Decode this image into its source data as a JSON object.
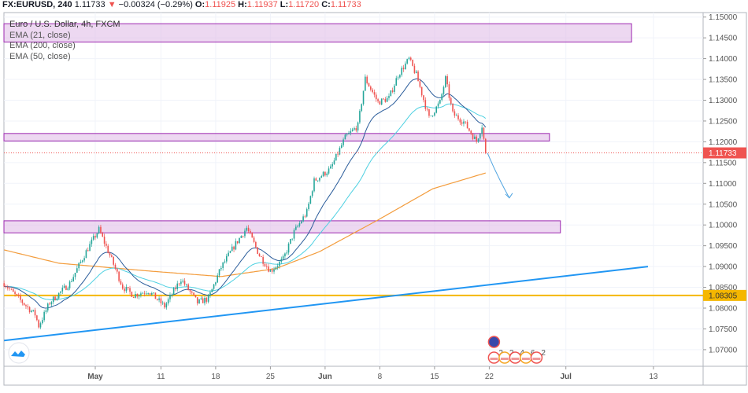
{
  "header": {
    "symbol": "FX:EURUSD, 240",
    "last": "1.11733",
    "change_arrow": "▼",
    "change": "−0.00324 (−0.29%)",
    "o_label": "O:",
    "o": "1.11925",
    "h_label": "H:",
    "h": "1.11937",
    "l_label": "L:",
    "l": "1.11720",
    "c_label": "C:",
    "c": "1.11733"
  },
  "legend": {
    "title": "Euro / U.S. Dollar, 4h, FXCM",
    "studies": [
      "EMA (21, close)",
      "EMA (200, close)",
      "EMA (50, close)"
    ]
  },
  "colors": {
    "up": "#26a69a",
    "down": "#ef5350",
    "ema21": "#2a5c9a",
    "ema50": "#4dd0e1",
    "ema200": "#f39c3c",
    "zone_fill": "#e1bee7",
    "zone_border": "#9c27b0",
    "trendline": "#2196f3",
    "support": "#f5b700",
    "last_price": "#ef5350",
    "arrow": "#4fa3e0"
  },
  "chart_data": {
    "type": "candlestick",
    "symbol": "EURUSD",
    "interval": "4h",
    "ylim": [
      1.0675,
      1.151
    ],
    "price_ticks": [
      "1.15000",
      "1.14500",
      "1.14000",
      "1.13500",
      "1.13000",
      "1.12500",
      "1.12000",
      "1.11500",
      "1.11000",
      "1.10500",
      "1.10000",
      "1.09500",
      "1.09000",
      "1.08500",
      "1.08000",
      "1.07500",
      "1.07000"
    ],
    "time_ticks": [
      {
        "label": "May",
        "date": "2020-05-01"
      },
      {
        "label": "11",
        "date": "2020-05-11"
      },
      {
        "label": "18",
        "date": "2020-05-18"
      },
      {
        "label": "25",
        "date": "2020-05-25"
      },
      {
        "label": "Jun",
        "date": "2020-06-01"
      },
      {
        "label": "8",
        "date": "2020-06-08"
      },
      {
        "label": "15",
        "date": "2020-06-15"
      },
      {
        "label": "22",
        "date": "2020-06-22"
      },
      {
        "label": "Jul",
        "date": "2020-07-01"
      },
      {
        "label": "13",
        "date": "2020-07-13"
      }
    ],
    "close_path": [
      [
        "2020-04-20 16:00",
        1.086
      ],
      [
        "2020-04-21 16:00",
        1.0831
      ],
      [
        "2020-04-23 12:00",
        1.0785
      ],
      [
        "2020-04-23 20:00",
        1.0757
      ],
      [
        "2020-04-24 20:00",
        1.0813
      ],
      [
        "2020-04-28 16:00",
        1.086
      ],
      [
        "2020-04-30 04:00",
        1.0936
      ],
      [
        "2020-05-01 08:00",
        1.0989
      ],
      [
        "2020-05-04 08:00",
        1.0927
      ],
      [
        "2020-05-05 12:00",
        1.0851
      ],
      [
        "2020-05-06 12:00",
        1.0831
      ],
      [
        "2020-05-07 20:00",
        1.0842
      ],
      [
        "2020-05-11 08:00",
        1.0804
      ],
      [
        "2020-05-12 20:00",
        1.087
      ],
      [
        "2020-05-14 08:00",
        1.0813
      ],
      [
        "2020-05-15 08:00",
        1.0823
      ],
      [
        "2020-05-18 12:00",
        1.0898
      ],
      [
        "2020-05-19 20:00",
        1.0955
      ],
      [
        "2020-05-20 20:00",
        1.0993
      ],
      [
        "2020-05-22 00:00",
        1.0927
      ],
      [
        "2020-05-25 00:00",
        1.0889
      ],
      [
        "2020-05-26 04:00",
        1.0917
      ],
      [
        "2020-05-27 04:00",
        1.0983
      ],
      [
        "2020-05-28 08:00",
        1.1031
      ],
      [
        "2020-05-29 00:00",
        1.1106
      ],
      [
        "2020-06-01 12:00",
        1.1135
      ],
      [
        "2020-06-02 20:00",
        1.121
      ],
      [
        "2020-06-04 00:00",
        1.1239
      ],
      [
        "2020-06-04 16:00",
        1.1352
      ],
      [
        "2020-06-05 20:00",
        1.1295
      ],
      [
        "2020-06-08 20:00",
        1.1305
      ],
      [
        "2020-06-09 16:00",
        1.1361
      ],
      [
        "2020-06-10 16:00",
        1.1399
      ],
      [
        "2020-06-11 08:00",
        1.1361
      ],
      [
        "2020-06-12 12:00",
        1.1257
      ],
      [
        "2020-06-15 12:00",
        1.1295
      ],
      [
        "2020-06-16 00:00",
        1.1352
      ],
      [
        "2020-06-16 16:00",
        1.1267
      ],
      [
        "2020-06-17 16:00",
        1.1248
      ],
      [
        "2020-06-18 20:00",
        1.1201
      ],
      [
        "2020-06-19 08:00",
        1.1239
      ],
      [
        "2020-06-19 16:00",
        1.11733
      ]
    ],
    "ema200_path": [
      [
        "2020-04-20 16:00",
        1.094
      ],
      [
        "2020-04-27 16:00",
        1.0908
      ],
      [
        "2020-05-08 00:00",
        1.0889
      ],
      [
        "2020-05-18 12:00",
        1.0876
      ],
      [
        "2020-05-25 12:00",
        1.0895
      ],
      [
        "2020-05-29 12:00",
        1.0936
      ],
      [
        "2020-06-05 20:00",
        1.1012
      ],
      [
        "2020-06-12 20:00",
        1.1087
      ],
      [
        "2020-06-19 16:00",
        1.1125
      ]
    ],
    "zones": [
      {
        "top": 1.1484,
        "bottom": 1.144,
        "from": "2020-04-20 16:00",
        "to": "2020-07-09 00:00"
      },
      {
        "top": 1.122,
        "bottom": 1.1202,
        "from": "2020-04-20 16:00",
        "to": "2020-06-29 12:00"
      },
      {
        "top": 1.101,
        "bottom": 1.0981,
        "from": "2020-04-20 16:00",
        "to": "2020-06-30 12:00"
      }
    ],
    "trendline": {
      "from": [
        "2020-04-20 16:00",
        1.0722
      ],
      "to": [
        "2020-07-10 12:00",
        1.09
      ]
    },
    "support_level": "1.08305",
    "last_price": "1.11733",
    "projection_arrow": {
      "from": [
        "2020-06-19 20:00",
        1.1173
      ],
      "to": [
        "2020-06-23 20:00",
        1.1065
      ]
    },
    "event_counts": [
      "2",
      "2",
      "4",
      "6",
      "2"
    ]
  }
}
